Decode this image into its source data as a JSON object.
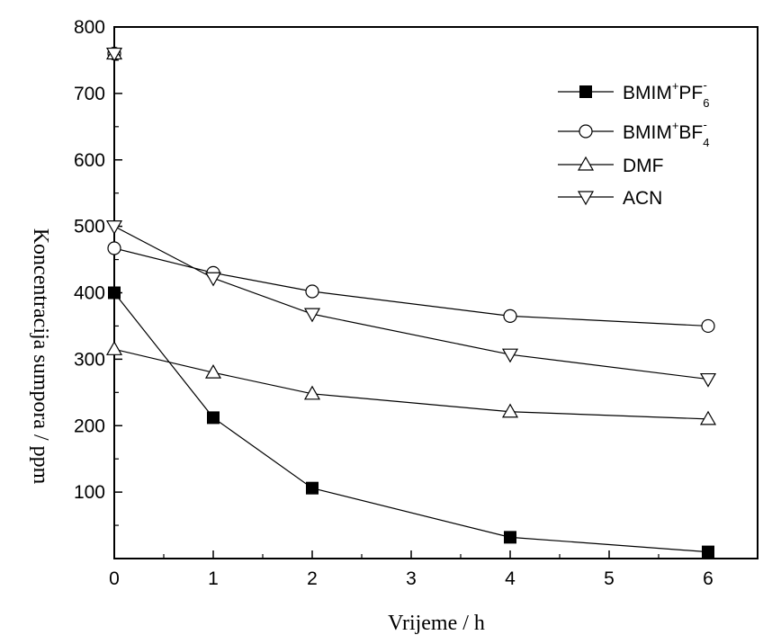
{
  "chart_data": {
    "type": "line",
    "title": "",
    "xlabel": "Vrijeme / h",
    "ylabel": "Koncentracija sumpora / ppm",
    "xlim": [
      0,
      6.5
    ],
    "ylim": [
      0,
      800
    ],
    "xticks": [
      0,
      1,
      2,
      3,
      4,
      5,
      6
    ],
    "yticks": [
      100,
      200,
      300,
      400,
      500,
      600,
      700,
      800
    ],
    "grid": false,
    "legend_position": "top-right",
    "initial_point": {
      "x": 0,
      "y": 760
    },
    "series": [
      {
        "name": "BMIM+PF6-",
        "label_main": "BMIM",
        "label_sup1": "+",
        "label_mid": "PF",
        "label_sub": "6",
        "label_sup2": "-",
        "marker": "filled-square",
        "x": [
          0,
          1,
          2,
          4,
          6
        ],
        "y": [
          400,
          212,
          106,
          32,
          10
        ]
      },
      {
        "name": "BMIM+BF4-",
        "label_main": "BMIM",
        "label_sup1": "+",
        "label_mid": "BF",
        "label_sub": "4",
        "label_sup2": "-",
        "marker": "open-circle",
        "x": [
          0,
          1,
          2,
          4,
          6
        ],
        "y": [
          467,
          430,
          402,
          365,
          350
        ]
      },
      {
        "name": "DMF",
        "label_main": "DMF",
        "marker": "open-triangle-up",
        "x": [
          0,
          1,
          2,
          4,
          6
        ],
        "y": [
          315,
          280,
          248,
          221,
          210
        ]
      },
      {
        "name": "ACN",
        "label_main": "ACN",
        "marker": "open-triangle-down",
        "x": [
          0,
          1,
          2,
          4,
          6
        ],
        "y": [
          500,
          422,
          368,
          307,
          270
        ]
      }
    ]
  }
}
